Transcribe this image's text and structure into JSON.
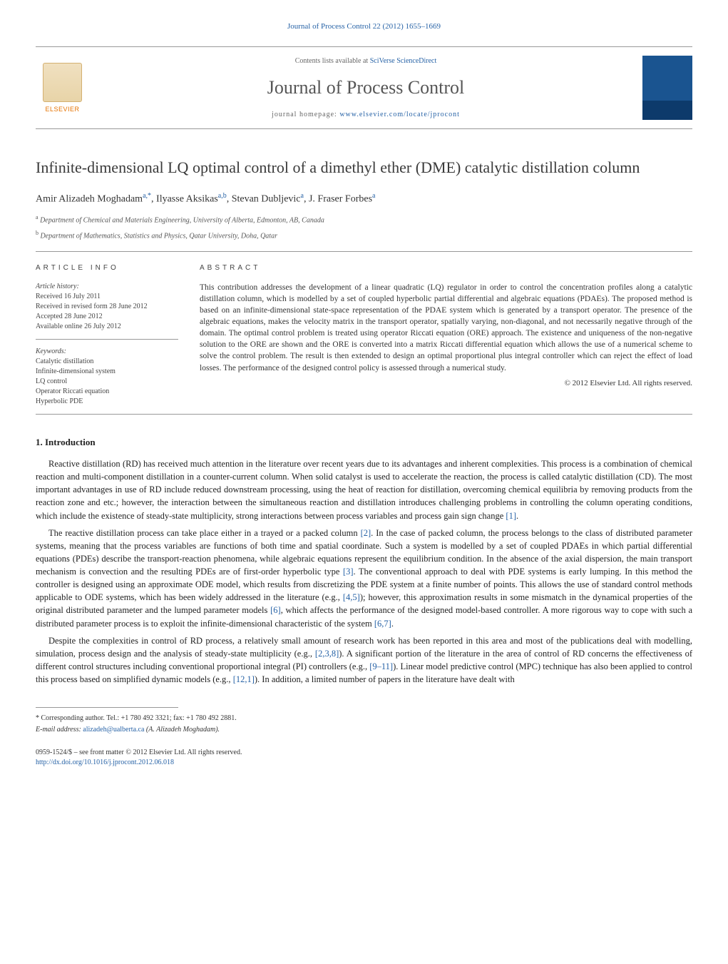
{
  "header": {
    "top_link": "Journal of Process Control 22 (2012) 1655–1669",
    "contents_prefix": "Contents lists available at ",
    "contents_link": "SciVerse ScienceDirect",
    "journal_title": "Journal of Process Control",
    "homepage_prefix": "journal homepage: ",
    "homepage_link": "www.elsevier.com/locate/jprocont",
    "publisher_name": "ELSEVIER"
  },
  "title": "Infinite-dimensional LQ optimal control of a dimethyl ether (DME) catalytic distillation column",
  "authors_html": "Amir Alizadeh Moghadam",
  "authors": [
    {
      "name": "Amir Alizadeh Moghadam",
      "sup": "a,*"
    },
    {
      "name": "Ilyasse Aksikas",
      "sup": "a,b"
    },
    {
      "name": "Stevan Dubljevic",
      "sup": "a"
    },
    {
      "name": "J. Fraser Forbes",
      "sup": "a"
    }
  ],
  "affiliations": [
    {
      "sup": "a",
      "text": "Department of Chemical and Materials Engineering, University of Alberta, Edmonton, AB, Canada"
    },
    {
      "sup": "b",
      "text": "Department of Mathematics, Statistics and Physics, Qatar University, Doha, Qatar"
    }
  ],
  "info": {
    "label": "ARTICLE INFO",
    "history_hdr": "Article history:",
    "history": [
      "Received 16 July 2011",
      "Received in revised form 28 June 2012",
      "Accepted 28 June 2012",
      "Available online 26 July 2012"
    ],
    "keywords_hdr": "Keywords:",
    "keywords": [
      "Catalytic distillation",
      "Infinite-dimensional system",
      "LQ control",
      "Operator Riccati equation",
      "Hyperbolic PDE"
    ]
  },
  "abstract": {
    "label": "ABSTRACT",
    "text": "This contribution addresses the development of a linear quadratic (LQ) regulator in order to control the concentration profiles along a catalytic distillation column, which is modelled by a set of coupled hyperbolic partial differential and algebraic equations (PDAEs). The proposed method is based on an infinite-dimensional state-space representation of the PDAE system which is generated by a transport operator. The presence of the algebraic equations, makes the velocity matrix in the transport operator, spatially varying, non-diagonal, and not necessarily negative through of the domain. The optimal control problem is treated using operator Riccati equation (ORE) approach. The existence and uniqueness of the non-negative solution to the ORE are shown and the ORE is converted into a matrix Riccati differential equation which allows the use of a numerical scheme to solve the control problem. The result is then extended to design an optimal proportional plus integral controller which can reject the effect of load losses. The performance of the designed control policy is assessed through a numerical study.",
    "copyright": "© 2012 Elsevier Ltd. All rights reserved."
  },
  "section1": {
    "heading": "1.  Introduction",
    "p1_a": "Reactive distillation (RD) has received much attention in the literature over recent years due to its advantages and inherent complexities. This process is a combination of chemical reaction and multi-component distillation in a counter-current column. When solid catalyst is used to accelerate the reaction, the process is called catalytic distillation (CD). The most important advantages in use of RD include reduced downstream processing, using the heat of reaction for distillation, overcoming chemical equilibria by removing products from the reaction zone and etc.; however, the interaction between the simultaneous reaction and distillation introduces challenging problems in controlling the column operating conditions, which include the existence of steady-state multiplicity, strong interactions between process variables and process gain sign change ",
    "p1_cite": "[1]",
    "p1_b": ".",
    "p2_a": "The reactive distillation process can take place either in a trayed or a packed column ",
    "p2_cite1": "[2]",
    "p2_b": ". In the case of packed column, the process belongs to the class of distributed parameter systems, meaning that the process variables are functions of both time and spatial coordinate. Such a system is modelled by a set of coupled PDAEs in which partial differential equations (PDEs) describe the transport-reaction phenomena, while algebraic equations represent the equilibrium condition. In the absence of the axial dispersion, the main transport mechanism is convection and the resulting PDEs are of first-order hyperbolic type ",
    "p2_cite2": "[3]",
    "p2_c": ". The conventional approach to deal with PDE systems is early lumping. In this method the controller is designed using an approximate ODE model, which results from discretizing the PDE system at a finite number of points. This allows the use of standard control methods applicable to ODE systems, which has been widely addressed in the literature (e.g., ",
    "p2_cite3": "[4,5]",
    "p2_d": "); however, this approximation results in some mismatch in the dynamical properties of the original distributed parameter and the lumped parameter models ",
    "p2_cite4": "[6]",
    "p2_e": ", which affects the performance of the designed model-based controller. A more rigorous way to cope with such a distributed parameter process is to exploit the infinite-dimensional characteristic of the system ",
    "p2_cite5": "[6,7]",
    "p2_f": ".",
    "p3_a": "Despite the complexities in control of RD process, a relatively small amount of research work has been reported in this area and most of the publications deal with modelling, simulation, process design and the analysis of steady-state multiplicity (e.g., ",
    "p3_cite1": "[2,3,8]",
    "p3_b": "). A significant portion of the literature in the area of control of RD concerns the effectiveness of different control structures including conventional proportional integral (PI) controllers (e.g., ",
    "p3_cite2": "[9–11]",
    "p3_c": "). Linear model predictive control (MPC) technique has also been applied to control this process based on simplified dynamic models (e.g., ",
    "p3_cite3": "[12,1]",
    "p3_d": "). In addition, a limited number of papers in the literature have dealt with"
  },
  "footer": {
    "corresponding": "* Corresponding author. Tel.: +1 780 492 3321; fax: +1 780 492 2881.",
    "email_label": "E-mail address: ",
    "email_link": "alizadeh@ualberta.ca",
    "email_tail": " (A. Alizadeh Moghadam).",
    "issn_line": "0959-1524/$ – see front matter © 2012 Elsevier Ltd. All rights reserved.",
    "doi_link": "http://dx.doi.org/10.1016/j.jprocont.2012.06.018"
  },
  "colors": {
    "link": "#2662a6",
    "text": "#333333",
    "elsevier_orange": "#e57200",
    "cover_blue": "#1a5490"
  }
}
